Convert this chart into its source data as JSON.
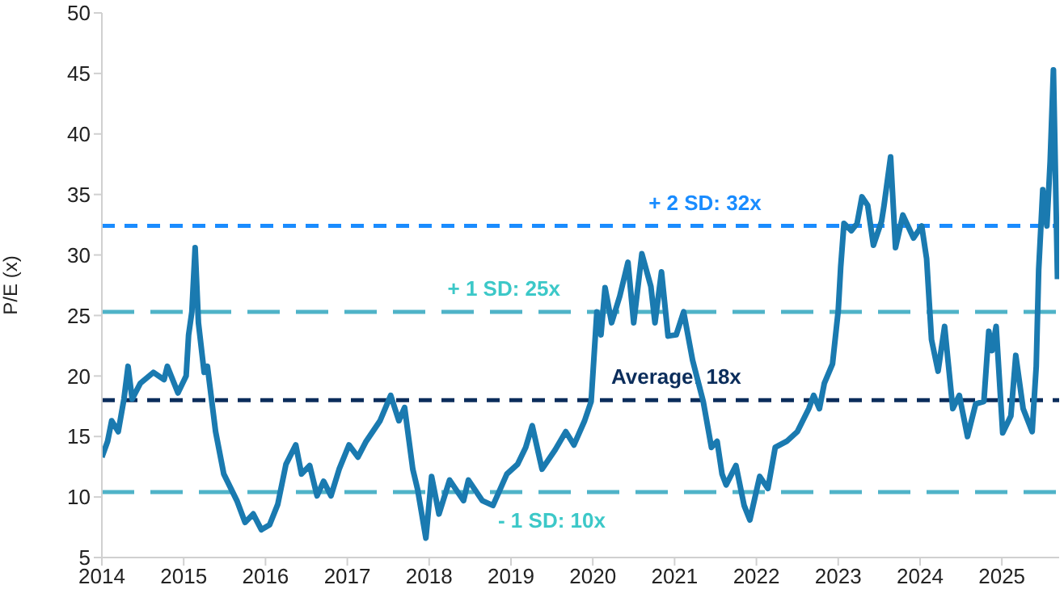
{
  "chart_data": {
    "type": "line",
    "ylabel": "P/E (x)",
    "x": [
      2014.0,
      2014.07,
      2014.12,
      2014.2,
      2014.27,
      2014.32,
      2014.37,
      2014.47,
      2014.63,
      2014.76,
      2014.8,
      2014.93,
      2015.03,
      2015.06,
      2015.1,
      2015.14,
      2015.18,
      2015.25,
      2015.29,
      2015.39,
      2015.49,
      2015.65,
      2015.75,
      2015.85,
      2015.95,
      2016.05,
      2016.15,
      2016.25,
      2016.37,
      2016.44,
      2016.54,
      2016.63,
      2016.71,
      2016.8,
      2016.9,
      2017.02,
      2017.13,
      2017.23,
      2017.4,
      2017.53,
      2017.63,
      2017.7,
      2017.8,
      2017.86,
      2017.96,
      2018.03,
      2018.12,
      2018.25,
      2018.42,
      2018.48,
      2018.65,
      2018.78,
      2018.95,
      2019.08,
      2019.18,
      2019.26,
      2019.38,
      2019.54,
      2019.67,
      2019.77,
      2019.9,
      2019.98,
      2020.05,
      2020.1,
      2020.15,
      2020.23,
      2020.33,
      2020.43,
      2020.5,
      2020.6,
      2020.71,
      2020.76,
      2020.84,
      2020.92,
      2021.02,
      2021.11,
      2021.22,
      2021.35,
      2021.45,
      2021.52,
      2021.58,
      2021.63,
      2021.75,
      2021.85,
      2021.92,
      2022.04,
      2022.14,
      2022.23,
      2022.37,
      2022.5,
      2022.64,
      2022.7,
      2022.77,
      2022.83,
      2022.93,
      2023.0,
      2023.03,
      2023.07,
      2023.16,
      2023.23,
      2023.29,
      2023.36,
      2023.43,
      2023.53,
      2023.56,
      2023.64,
      2023.7,
      2023.79,
      2023.92,
      2024.02,
      2024.08,
      2024.14,
      2024.22,
      2024.3,
      2024.4,
      2024.48,
      2024.58,
      2024.68,
      2024.78,
      2024.84,
      2024.88,
      2024.93,
      2025.01,
      2025.11,
      2025.17,
      2025.26,
      2025.37,
      2025.42,
      2025.45,
      2025.5,
      2025.55,
      2025.59,
      2025.63,
      2025.68
    ],
    "series": [
      {
        "color": "#1a7ab0",
        "values": [
          13.3,
          14.6,
          16.3,
          15.4,
          18.1,
          20.8,
          18.1,
          19.4,
          20.3,
          19.7,
          20.8,
          18.6,
          20,
          23.4,
          25.3,
          30.6,
          24.4,
          20.3,
          20.8,
          15.4,
          11.9,
          9.7,
          7.9,
          8.6,
          7.3,
          7.7,
          9.4,
          12.7,
          14.3,
          11.9,
          12.6,
          10.1,
          11.3,
          10.1,
          12.3,
          14.3,
          13.3,
          14.6,
          16.3,
          18.4,
          16.3,
          17.4,
          12.3,
          10.6,
          6.6,
          11.7,
          8.6,
          11.4,
          9.7,
          11.4,
          9.7,
          9.3,
          11.9,
          12.7,
          14.1,
          15.9,
          12.3,
          13.9,
          15.4,
          14.3,
          16.3,
          17.9,
          25.3,
          23.4,
          27.3,
          24.4,
          26.6,
          29.4,
          24.4,
          30.1,
          27.4,
          24.4,
          28.6,
          23.3,
          23.4,
          25.3,
          21.3,
          17.9,
          14.1,
          14.6,
          11.9,
          11.0,
          12.6,
          9.3,
          8.1,
          11.7,
          10.7,
          14.1,
          14.6,
          15.4,
          17.3,
          18.4,
          17.3,
          19.4,
          21.0,
          25.4,
          29.0,
          32.6,
          32.0,
          32.6,
          34.8,
          34.1,
          30.8,
          32.8,
          34.1,
          38.1,
          30.6,
          33.3,
          31.4,
          32.4,
          29.7,
          23.0,
          20.4,
          24.1,
          17.3,
          18.4,
          15.0,
          17.7,
          17.9,
          23.7,
          22.1,
          24.1,
          15.3,
          16.7,
          21.7,
          17.3,
          15.4,
          20.8,
          28.8,
          35.4,
          32.4,
          37.7,
          45.3,
          28.0
        ]
      }
    ],
    "xlim": [
      2014,
      2025.7
    ],
    "xticks": [
      2014,
      2015,
      2016,
      2017,
      2018,
      2019,
      2020,
      2021,
      2022,
      2023,
      2024,
      2025
    ],
    "ylim": [
      5,
      50
    ],
    "yticks": [
      5,
      10,
      15,
      20,
      25,
      30,
      35,
      40,
      45,
      50
    ],
    "ref_lines": [
      {
        "axis": "y",
        "value": 32.4,
        "label": "+ 2 SD: 32x",
        "color": "#1a8cff",
        "line_style": "dashed"
      },
      {
        "axis": "y",
        "value": 25.3,
        "label": "+ 1 SD: 25x",
        "color": "#4fb3c8",
        "line_style": "dashed"
      },
      {
        "axis": "y",
        "value": 18,
        "label": "Average: 18x",
        "color": "#0b2d5b",
        "line_style": "dashed"
      },
      {
        "axis": "y",
        "value": 10.4,
        "label": "- 1 SD: 10x",
        "color": "#4fb3c8",
        "line_style": "dashed"
      }
    ],
    "grid": false,
    "legend": false,
    "marker": "none",
    "line_style": "solid"
  }
}
